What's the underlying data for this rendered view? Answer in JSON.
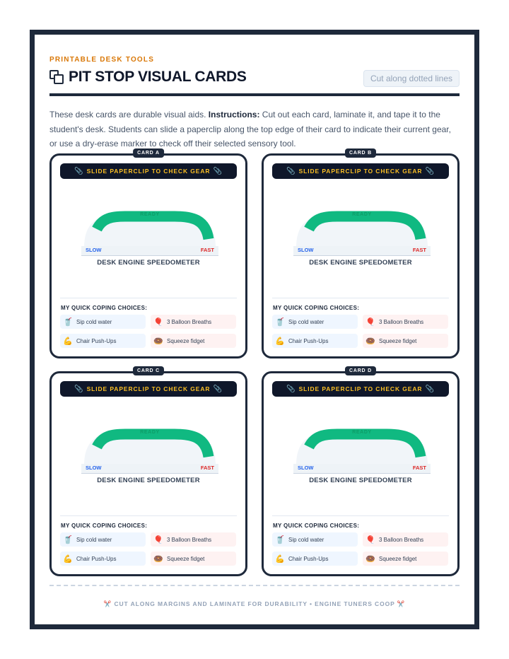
{
  "header": {
    "eyebrow": "PRINTABLE DESK TOOLS",
    "title_icon": "copy-icon",
    "title": "PIT STOP VISUAL CARDS",
    "cut_badge": "Cut along dotted lines"
  },
  "intro": {
    "lead": "These desk cards are durable visual aids. ",
    "instructions_label": "Instructions:",
    "body": " Cut out each card, laminate it, and tape it to the student's desk. Students can slide a paperclip along the top edge of their card to indicate their current gear, or use a dry-erase marker to check off their selected sensory tool."
  },
  "colors": {
    "dark": "#1e293b",
    "green": "#10b981",
    "amber": "#fbbf24",
    "slow": "#2563eb",
    "fast": "#dc2626"
  },
  "cards": [
    {
      "tag": "CARD A",
      "clip_text": "SLIDE PAPERCLIP TO CHECK GEAR",
      "gauge": {
        "ready": "READY",
        "slow": "SLOW",
        "fast": "FAST",
        "title": "DESK ENGINE SPEEDOMETER"
      },
      "choices_title": "MY QUICK COPING CHOICES:",
      "choices": [
        {
          "icon": "🥤",
          "label": "Sip cold water",
          "tone": "blue"
        },
        {
          "icon": "🎈",
          "label": "3 Balloon Breaths",
          "tone": "red"
        },
        {
          "icon": "💪",
          "label": "Chair Push-Ups",
          "tone": "blue"
        },
        {
          "icon": "🍩",
          "label": "Squeeze fidget",
          "tone": "red"
        }
      ]
    },
    {
      "tag": "CARD B",
      "clip_text": "SLIDE PAPERCLIP TO CHECK GEAR",
      "gauge": {
        "ready": "READY",
        "slow": "SLOW",
        "fast": "FAST",
        "title": "DESK ENGINE SPEEDOMETER"
      },
      "choices_title": "MY QUICK COPING CHOICES:",
      "choices": [
        {
          "icon": "🥤",
          "label": "Sip cold water",
          "tone": "blue"
        },
        {
          "icon": "🎈",
          "label": "3 Balloon Breaths",
          "tone": "red"
        },
        {
          "icon": "💪",
          "label": "Chair Push-Ups",
          "tone": "blue"
        },
        {
          "icon": "🍩",
          "label": "Squeeze fidget",
          "tone": "red"
        }
      ]
    },
    {
      "tag": "CARD C",
      "clip_text": "SLIDE PAPERCLIP TO CHECK GEAR",
      "gauge": {
        "ready": "READY",
        "slow": "SLOW",
        "fast": "FAST",
        "title": "DESK ENGINE SPEEDOMETER"
      },
      "choices_title": "MY QUICK COPING CHOICES:",
      "choices": [
        {
          "icon": "🥤",
          "label": "Sip cold water",
          "tone": "blue"
        },
        {
          "icon": "🎈",
          "label": "3 Balloon Breaths",
          "tone": "red"
        },
        {
          "icon": "💪",
          "label": "Chair Push-Ups",
          "tone": "blue"
        },
        {
          "icon": "🍩",
          "label": "Squeeze fidget",
          "tone": "red"
        }
      ]
    },
    {
      "tag": "CARD D",
      "clip_text": "SLIDE PAPERCLIP TO CHECK GEAR",
      "gauge": {
        "ready": "READY",
        "slow": "SLOW",
        "fast": "FAST",
        "title": "DESK ENGINE SPEEDOMETER"
      },
      "choices_title": "MY QUICK COPING CHOICES:",
      "choices": [
        {
          "icon": "🥤",
          "label": "Sip cold water",
          "tone": "blue"
        },
        {
          "icon": "🎈",
          "label": "3 Balloon Breaths",
          "tone": "red"
        },
        {
          "icon": "💪",
          "label": "Chair Push-Ups",
          "tone": "blue"
        },
        {
          "icon": "🍩",
          "label": "Squeeze fidget",
          "tone": "red"
        }
      ]
    }
  ],
  "footer": {
    "icon": "scissors-icon",
    "text": "CUT ALONG MARGINS AND LAMINATE FOR DURABILITY • ENGINE TUNERS COOP"
  }
}
